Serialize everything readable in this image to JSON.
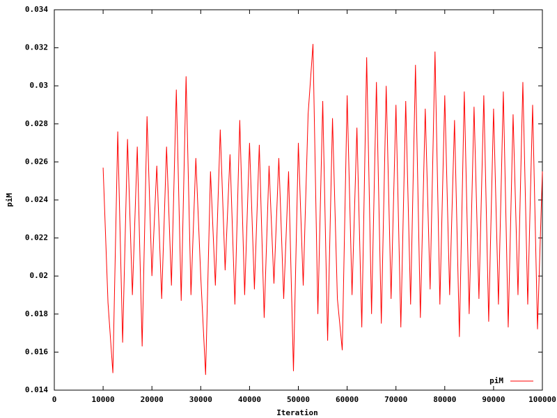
{
  "chart_data": {
    "type": "line",
    "x_label": "Iteration",
    "y_label": "piM",
    "x": [
      10000,
      11000,
      12000,
      13000,
      14000,
      15000,
      16000,
      17000,
      18000,
      19000,
      20000,
      21000,
      22000,
      23000,
      24000,
      25000,
      26000,
      27000,
      28000,
      29000,
      30000,
      31000,
      32000,
      33000,
      34000,
      35000,
      36000,
      37000,
      38000,
      39000,
      40000,
      41000,
      42000,
      43000,
      44000,
      45000,
      46000,
      47000,
      48000,
      49000,
      50000,
      51000,
      52000,
      53000,
      54000,
      55000,
      56000,
      57000,
      58000,
      59000,
      60000,
      61000,
      62000,
      63000,
      64000,
      65000,
      66000,
      67000,
      68000,
      69000,
      70000,
      71000,
      72000,
      73000,
      74000,
      75000,
      76000,
      77000,
      78000,
      79000,
      80000,
      81000,
      82000,
      83000,
      84000,
      85000,
      86000,
      87000,
      88000,
      89000,
      90000,
      91000,
      92000,
      93000,
      94000,
      95000,
      96000,
      97000,
      98000,
      99000,
      100000
    ],
    "series": [
      {
        "name": "piM",
        "color": "#ff0000",
        "values": [
          0.0257,
          0.0186,
          0.0149,
          0.0276,
          0.0165,
          0.0272,
          0.019,
          0.0268,
          0.0163,
          0.0284,
          0.02,
          0.0258,
          0.0188,
          0.0268,
          0.0195,
          0.0298,
          0.0187,
          0.0305,
          0.019,
          0.0262,
          0.02,
          0.0148,
          0.0255,
          0.0195,
          0.0277,
          0.0203,
          0.0264,
          0.0185,
          0.0282,
          0.019,
          0.027,
          0.0193,
          0.0269,
          0.0178,
          0.0258,
          0.0196,
          0.0262,
          0.0188,
          0.0255,
          0.015,
          0.027,
          0.0195,
          0.0285,
          0.0322,
          0.018,
          0.0292,
          0.0166,
          0.0283,
          0.0188,
          0.0161,
          0.0295,
          0.019,
          0.0278,
          0.0173,
          0.0315,
          0.018,
          0.0302,
          0.0175,
          0.03,
          0.0188,
          0.029,
          0.0173,
          0.0292,
          0.0185,
          0.0311,
          0.0178,
          0.0288,
          0.0193,
          0.0318,
          0.0185,
          0.0295,
          0.019,
          0.0282,
          0.0168,
          0.0297,
          0.018,
          0.0289,
          0.0188,
          0.0295,
          0.0176,
          0.0288,
          0.0185,
          0.0297,
          0.0173,
          0.0285,
          0.019,
          0.0302,
          0.0185,
          0.029,
          0.0172,
          0.0255
        ]
      }
    ],
    "xlim": [
      0,
      100000
    ],
    "xticks": [
      0,
      10000,
      20000,
      30000,
      40000,
      50000,
      60000,
      70000,
      80000,
      90000,
      100000
    ],
    "ylim": [
      0.014,
      0.034
    ],
    "yticks": [
      0.014,
      0.016,
      0.018,
      0.02,
      0.022,
      0.024,
      0.026,
      0.028,
      0.03,
      0.032,
      0.034
    ],
    "grid": false,
    "legend": "bottom-right"
  }
}
